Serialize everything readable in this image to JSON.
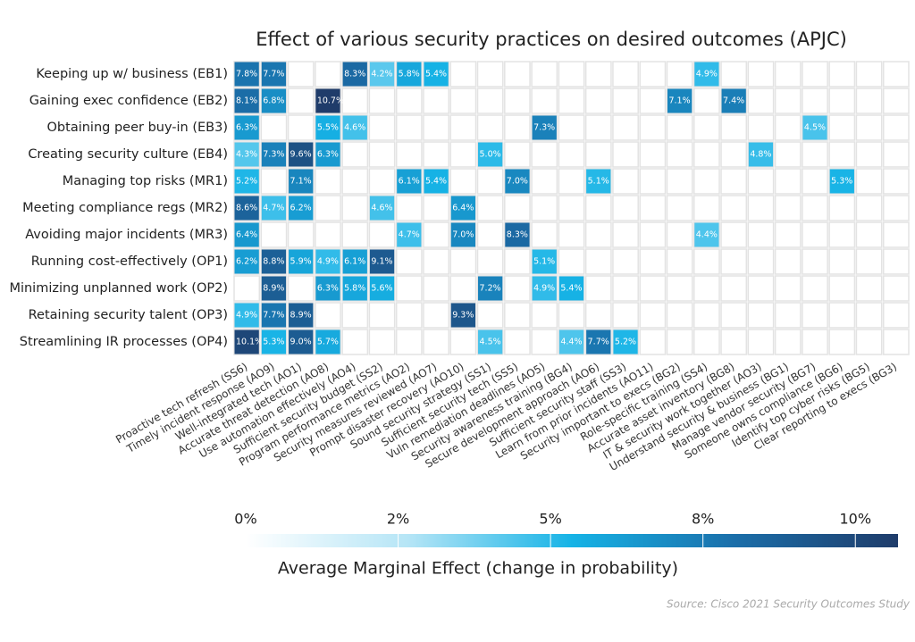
{
  "chart_data": {
    "type": "heatmap",
    "title": "Effect of various security practices on desired outcomes (APJC)",
    "rows": [
      "Keeping up w/ business (EB1)",
      "Gaining exec confidence (EB2)",
      "Obtaining peer buy-in (EB3)",
      "Creating security culture (EB4)",
      "Managing top risks (MR1)",
      "Meeting compliance regs (MR2)",
      "Avoiding major incidents (MR3)",
      "Running cost-effectively (OP1)",
      "Minimizing unplanned work (OP2)",
      "Retaining security talent (OP3)",
      "Streamlining IR processes (OP4)"
    ],
    "columns": [
      "Proactive tech refresh (SS6)",
      "Timely incident response (AO9)",
      "Well-integrated tech (AO1)",
      "Accurate threat detection (AO8)",
      "Use automation effectively (AO4)",
      "Sufficient security budget (SS2)",
      "Program performance metrics (AO2)",
      "Security measures reviewed (AO7)",
      "Prompt disaster recovery (AO10)",
      "Sound security strategy (SS1)",
      "Sufficient security tech (SS5)",
      "Vuln remediation deadlines (AO5)",
      "Security awareness training (BG4)",
      "Secure development approach (AO6)",
      "Sufficient security staff (SS3)",
      "Learn from prior incidents (AO11)",
      "Security important to execs (BG2)",
      "Role-specific training (SS4)",
      "Accurate asset inventory (BG8)",
      "IT & security work together (AO3)",
      "Understand security & business (BG1)",
      "Manage vendor security (BG7)",
      "Someone owns compliance (BG6)",
      "Identify top cyber risks (BG5)",
      "Clear reporting to execs (BG3)"
    ],
    "values": [
      [
        7.8,
        7.7,
        null,
        null,
        8.3,
        4.2,
        5.8,
        5.4,
        null,
        null,
        null,
        null,
        null,
        null,
        null,
        null,
        null,
        4.9,
        null,
        null,
        null,
        null,
        null,
        null,
        null
      ],
      [
        8.1,
        6.8,
        null,
        10.7,
        null,
        null,
        null,
        null,
        null,
        null,
        null,
        null,
        null,
        null,
        null,
        null,
        7.1,
        null,
        7.4,
        null,
        null,
        null,
        null,
        null,
        null
      ],
      [
        6.3,
        null,
        null,
        5.5,
        4.6,
        null,
        null,
        null,
        null,
        null,
        null,
        7.3,
        null,
        null,
        null,
        null,
        null,
        null,
        null,
        null,
        null,
        4.5,
        null,
        null,
        null
      ],
      [
        4.3,
        7.3,
        9.6,
        6.3,
        null,
        null,
        null,
        null,
        null,
        5.0,
        null,
        null,
        null,
        null,
        null,
        null,
        null,
        null,
        null,
        4.8,
        null,
        null,
        null,
        null,
        null
      ],
      [
        5.2,
        null,
        7.1,
        null,
        null,
        null,
        6.1,
        5.4,
        null,
        null,
        7.0,
        null,
        null,
        5.1,
        null,
        null,
        null,
        null,
        null,
        null,
        null,
        null,
        5.3,
        null,
        null
      ],
      [
        8.6,
        4.7,
        6.2,
        null,
        null,
        4.6,
        null,
        null,
        6.4,
        null,
        null,
        null,
        null,
        null,
        null,
        null,
        null,
        null,
        null,
        null,
        null,
        null,
        null,
        null,
        null
      ],
      [
        6.4,
        null,
        null,
        null,
        null,
        null,
        4.7,
        null,
        7.0,
        null,
        8.3,
        null,
        null,
        null,
        null,
        null,
        null,
        4.4,
        null,
        null,
        null,
        null,
        null,
        null,
        null
      ],
      [
        6.2,
        8.8,
        5.9,
        4.9,
        6.1,
        9.1,
        null,
        null,
        null,
        null,
        null,
        5.1,
        null,
        null,
        null,
        null,
        null,
        null,
        null,
        null,
        null,
        null,
        null,
        null,
        null
      ],
      [
        null,
        8.9,
        null,
        6.3,
        5.8,
        5.6,
        null,
        null,
        null,
        7.2,
        null,
        4.9,
        5.4,
        null,
        null,
        null,
        null,
        null,
        null,
        null,
        null,
        null,
        null,
        null,
        null
      ],
      [
        4.9,
        7.7,
        8.9,
        null,
        null,
        null,
        null,
        null,
        9.3,
        null,
        null,
        null,
        null,
        null,
        null,
        null,
        null,
        null,
        null,
        null,
        null,
        null,
        null,
        null,
        null
      ],
      [
        10.1,
        5.3,
        9.0,
        5.7,
        null,
        null,
        null,
        null,
        null,
        4.5,
        null,
        null,
        4.4,
        7.7,
        5.2,
        null,
        null,
        null,
        null,
        null,
        null,
        null,
        null,
        null,
        null
      ]
    ],
    "value_labels": [
      [
        "7.8%",
        "7.7%",
        null,
        null,
        "8.3%",
        "4.2%",
        "5.8%",
        "5.4%",
        null,
        null,
        null,
        null,
        null,
        null,
        null,
        null,
        null,
        "4.9%",
        null,
        null,
        null,
        null,
        null,
        null,
        null
      ],
      [
        "8.1%",
        "6.8%",
        null,
        "10.7%",
        null,
        null,
        null,
        null,
        null,
        null,
        null,
        null,
        null,
        null,
        null,
        null,
        "7.1%",
        null,
        "7.4%",
        null,
        null,
        null,
        null,
        null,
        null
      ],
      [
        "6.3%",
        null,
        null,
        "5.5%",
        "4.6%",
        null,
        null,
        null,
        null,
        null,
        null,
        "7.3%",
        null,
        null,
        null,
        null,
        null,
        null,
        null,
        null,
        null,
        "4.5%",
        null,
        null,
        null
      ],
      [
        "4.3%",
        "7.3%",
        "9.6%",
        "6.3%",
        null,
        null,
        null,
        null,
        null,
        "5.0%",
        null,
        null,
        null,
        null,
        null,
        null,
        null,
        null,
        null,
        "4.8%",
        null,
        null,
        null,
        null,
        null
      ],
      [
        "5.2%",
        null,
        "7.1%",
        null,
        null,
        null,
        "6.1%",
        "5.4%",
        null,
        null,
        "7.0%",
        null,
        null,
        "5.1%",
        null,
        null,
        null,
        null,
        null,
        null,
        null,
        null,
        "5.3%",
        null,
        null
      ],
      [
        "8.6%",
        "4.7%",
        "6.2%",
        null,
        null,
        "4.6%",
        null,
        null,
        "6.4%",
        null,
        null,
        null,
        null,
        null,
        null,
        null,
        null,
        null,
        null,
        null,
        null,
        null,
        null,
        null,
        null
      ],
      [
        "6.4%",
        null,
        null,
        null,
        null,
        null,
        "4.7%",
        null,
        "7.0%",
        null,
        "8.3%",
        null,
        null,
        null,
        null,
        null,
        null,
        "4.4%",
        null,
        null,
        null,
        null,
        null,
        null,
        null
      ],
      [
        "6.2%",
        "8.8%",
        "5.9%",
        "4.9%",
        "6.1%",
        "9.1%",
        null,
        null,
        null,
        null,
        null,
        "5.1%",
        null,
        null,
        null,
        null,
        null,
        null,
        null,
        null,
        null,
        null,
        null,
        null,
        null
      ],
      [
        null,
        "8.9%",
        null,
        "6.3%",
        "5.8%",
        "5.6%",
        null,
        null,
        null,
        "7.2%",
        null,
        "4.9%",
        "5.4%",
        null,
        null,
        null,
        null,
        null,
        null,
        null,
        null,
        null,
        null,
        null,
        null
      ],
      [
        "4.9%",
        "7.7%",
        "8.9%",
        null,
        null,
        null,
        null,
        null,
        "9.3%",
        null,
        null,
        null,
        null,
        null,
        null,
        null,
        null,
        null,
        null,
        null,
        null,
        null,
        null,
        null,
        null
      ],
      [
        "10.1%",
        "5.3%",
        "9.0%",
        "5.7%",
        null,
        null,
        null,
        null,
        null,
        "4.5%",
        null,
        null,
        "4.4%",
        "7.7%",
        "5.2%",
        null,
        null,
        null,
        null,
        null,
        null,
        null,
        null,
        null,
        null
      ]
    ],
    "clim": [
      0,
      10.7
    ],
    "colors": [
      "#ffffff",
      "#b5e5f6",
      "#16b3e6",
      "#1b6ea9",
      "#1f3c6a"
    ],
    "colorbar_ticks": [
      {
        "value": 0,
        "label": "0%"
      },
      {
        "value": 2.5,
        "label": "2%"
      },
      {
        "value": 5,
        "label": "5%"
      },
      {
        "value": 7.5,
        "label": "8%"
      },
      {
        "value": 10,
        "label": "10%"
      }
    ],
    "colorbar_label": "Average Marginal Effect (change in probability)",
    "source": "Source: Cisco 2021 Security Outcomes Study"
  }
}
